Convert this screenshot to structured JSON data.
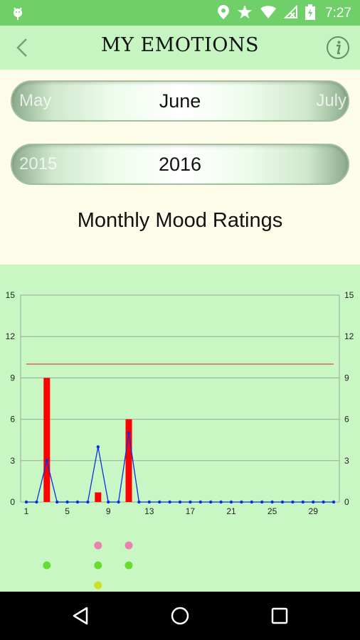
{
  "status_bar": {
    "time": "7:27"
  },
  "header": {
    "title": "MY EMOTIONS"
  },
  "month_picker": {
    "prev": "May",
    "current": "June",
    "next": "July"
  },
  "year_picker": {
    "prev": "2015",
    "current": "2016"
  },
  "chart_title": "Monthly Mood Ratings",
  "chart_data": {
    "type": "bar",
    "title": "Monthly Mood Ratings",
    "x": [
      1,
      2,
      3,
      4,
      5,
      6,
      7,
      8,
      9,
      10,
      11,
      12,
      13,
      14,
      15,
      16,
      17,
      18,
      19,
      20,
      21,
      22,
      23,
      24,
      25,
      26,
      27,
      28,
      29,
      30,
      31
    ],
    "x_ticks": [
      1,
      5,
      9,
      13,
      17,
      21,
      25,
      29
    ],
    "ylim": [
      0,
      15
    ],
    "y_ticks": [
      0,
      3,
      6,
      9,
      12,
      15
    ],
    "grid": true,
    "series": [
      {
        "type": "bar",
        "color": "#ff0000",
        "values": [
          0,
          0,
          9,
          0,
          0,
          0,
          0,
          0.7,
          0,
          0,
          6,
          0,
          0,
          0,
          0,
          0,
          0,
          0,
          0,
          0,
          0,
          0,
          0,
          0,
          0,
          0,
          0,
          0,
          0,
          0,
          0
        ]
      },
      {
        "type": "line",
        "color": "#0a2ee8",
        "values": [
          0,
          0,
          3,
          0,
          0,
          0,
          0,
          4,
          0,
          0,
          5,
          0,
          0,
          0,
          0,
          0,
          0,
          0,
          0,
          0,
          0,
          0,
          0,
          0,
          0,
          0,
          0,
          0,
          0,
          0,
          0
        ]
      }
    ],
    "reference_line": {
      "y": 10,
      "color": "#e02020"
    },
    "markers": [
      {
        "x": 3,
        "row": 2,
        "color": "#66dd33"
      },
      {
        "x": 8,
        "row": 1,
        "color": "#ee80b0"
      },
      {
        "x": 8,
        "row": 2,
        "color": "#66dd33"
      },
      {
        "x": 8,
        "row": 3,
        "color": "#cde028"
      },
      {
        "x": 11,
        "row": 1,
        "color": "#ee80b0"
      },
      {
        "x": 11,
        "row": 2,
        "color": "#66dd33"
      }
    ]
  },
  "icons": {
    "status_left": "android-icon",
    "status_right": [
      "location-icon",
      "star-icon",
      "wifi-icon",
      "no-signal-icon",
      "battery-charging-icon"
    ],
    "back": "chevron-left-icon",
    "info": "info-icon",
    "nav": [
      "back-triangle-icon",
      "home-circle-icon",
      "recents-square-icon"
    ]
  }
}
